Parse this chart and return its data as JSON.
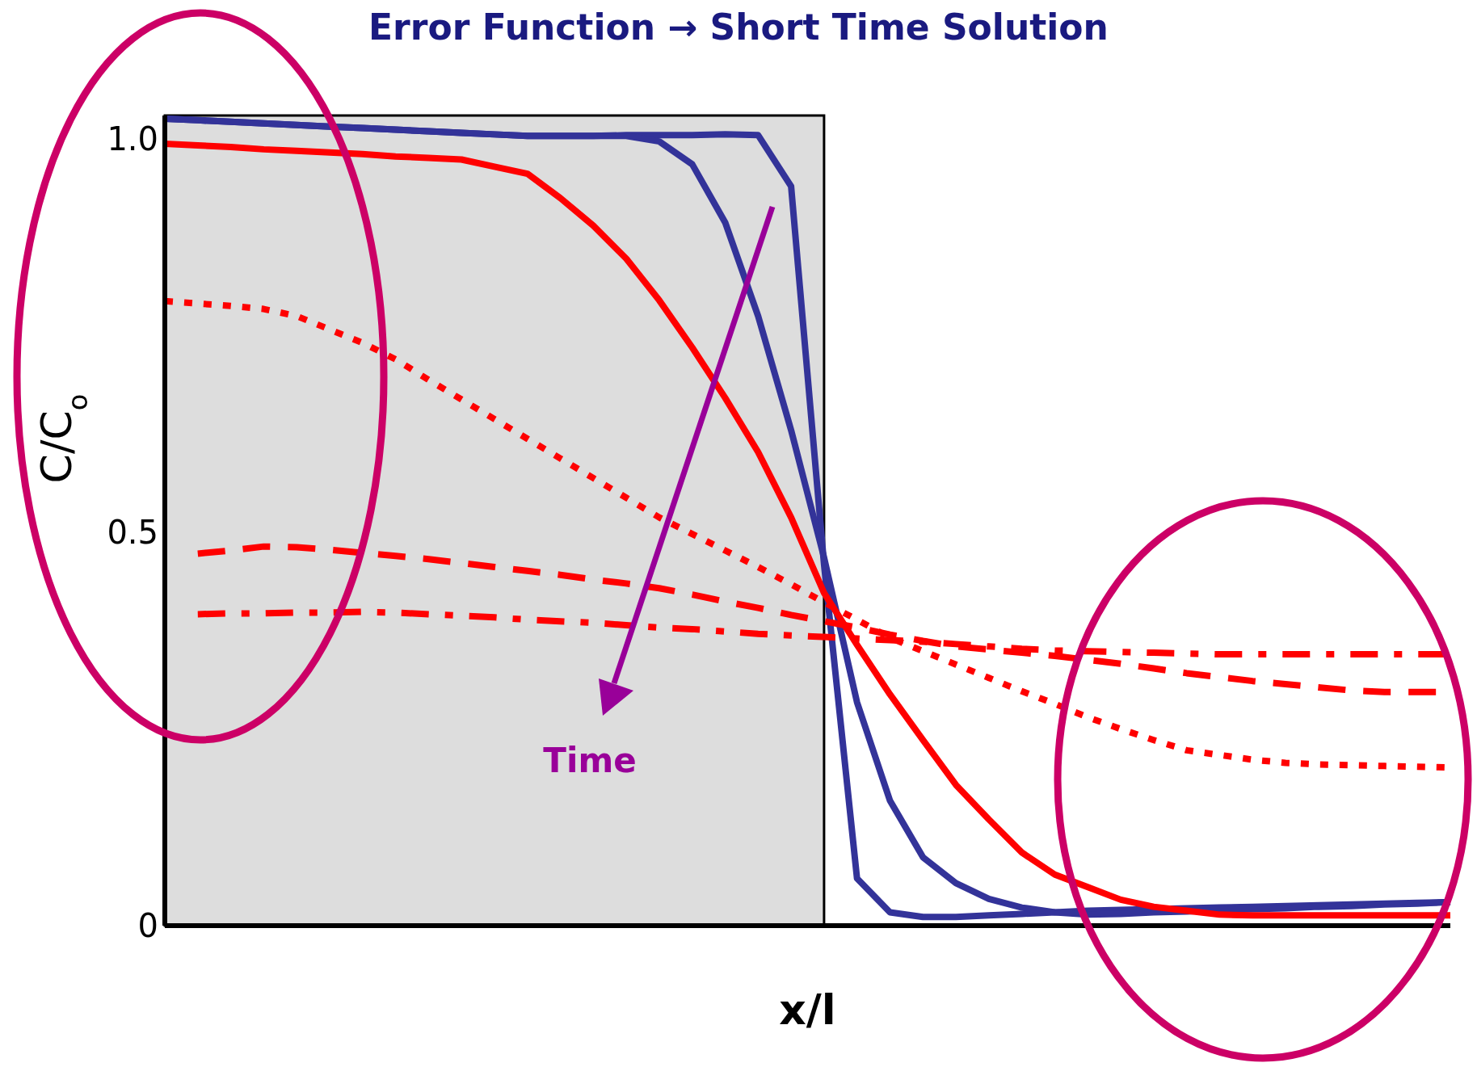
{
  "chart_data": {
    "type": "line",
    "title": "Error Function → Short Time Solution",
    "xlabel": "x/l",
    "ylabel": "C/C$_{o}$",
    "categories": [
      null,
      null,
      null,
      null,
      null,
      null,
      null,
      null,
      null,
      null,
      null,
      null,
      null,
      null,
      null,
      null,
      null,
      null,
      null,
      null,
      null,
      null,
      null,
      null,
      null,
      null,
      null,
      null,
      null,
      null,
      null,
      null,
      null,
      null,
      null,
      null,
      null,
      null,
      null,
      null
    ],
    "ylim": [
      0,
      1.03
    ],
    "yticks": [
      0,
      0.5,
      {
        "value": 1,
        "label": "1.0"
      }
    ],
    "marker": "none",
    "annotations": [
      "Time"
    ],
    "series": [
      {
        "color": "#333399",
        "line_style": "solid",
        "values": [
          1.026,
          1.024,
          1.022,
          1.02,
          1.018,
          1.016,
          1.014,
          1.012,
          1.01,
          1.008,
          1.006,
          1.004,
          1.004,
          1.004,
          1.005,
          1.005,
          1.005,
          1.006,
          1.005,
          0.94,
          0.459,
          0.06,
          0.017,
          0.011,
          0.011,
          0.013,
          0.015,
          0.017,
          0.019,
          0.02,
          0.021,
          0.022,
          0.023,
          0.024,
          0.025,
          0.026,
          0.027,
          0.028,
          0.029,
          0.03
        ]
      },
      {
        "color": "#333399",
        "line_style": "solid",
        "values": [
          1.026,
          1.024,
          1.022,
          1.02,
          1.018,
          1.016,
          1.014,
          1.012,
          1.01,
          1.008,
          1.006,
          1.004,
          1.004,
          1.004,
          1.004,
          0.997,
          0.968,
          0.894,
          0.775,
          0.63,
          0.468,
          0.284,
          0.159,
          0.087,
          0.054,
          0.034,
          0.023,
          0.017,
          0.014,
          0.015,
          0.017,
          0.018,
          0.02,
          0.021,
          0.022,
          0.024,
          0.025,
          0.027,
          0.028,
          0.03
        ]
      },
      {
        "color": "#ff0000",
        "line_style": "solid",
        "values": [
          0.994,
          0.992,
          0.99,
          0.987,
          0.985,
          0.983,
          0.981,
          0.978,
          0.976,
          0.974,
          0.965,
          0.956,
          0.925,
          0.89,
          0.848,
          0.795,
          0.735,
          0.671,
          0.602,
          0.519,
          0.423,
          0.357,
          0.294,
          0.236,
          0.179,
          0.135,
          0.093,
          0.065,
          0.049,
          0.033,
          0.024,
          0.019,
          0.014,
          0.013,
          0.013,
          0.013,
          0.013,
          0.013,
          0.013,
          0.013
        ]
      },
      {
        "color": "#ff0000",
        "line_style": "dotted",
        "values": [
          0.794,
          0.791,
          0.788,
          0.784,
          0.775,
          0.758,
          0.741,
          0.72,
          0.694,
          0.669,
          0.644,
          0.619,
          0.594,
          0.569,
          0.544,
          0.519,
          0.498,
          0.477,
          0.456,
          0.434,
          0.411,
          0.389,
          0.366,
          0.349,
          0.332,
          0.315,
          0.298,
          0.282,
          0.265,
          0.25,
          0.236,
          0.223,
          0.217,
          0.211,
          0.207,
          0.205,
          0.204,
          0.203,
          0.202,
          0.201
        ]
      },
      {
        "color": "#ff0000",
        "line_style": "dashed",
        "values": [
          null,
          0.473,
          0.477,
          0.482,
          0.481,
          0.478,
          0.474,
          0.47,
          0.466,
          0.461,
          0.456,
          0.451,
          0.446,
          0.44,
          0.435,
          0.429,
          0.421,
          0.412,
          0.404,
          0.395,
          0.387,
          0.379,
          0.37,
          0.362,
          0.355,
          0.351,
          0.347,
          0.343,
          0.338,
          0.333,
          0.327,
          0.321,
          0.316,
          0.311,
          0.307,
          0.303,
          0.299,
          0.297,
          0.297,
          0.297
        ]
      },
      {
        "color": "#ff0000",
        "line_style": "dashdot",
        "values": [
          null,
          0.396,
          0.397,
          0.397,
          0.398,
          0.398,
          0.399,
          0.398,
          0.396,
          0.394,
          0.392,
          0.389,
          0.387,
          0.385,
          0.382,
          0.379,
          0.377,
          0.374,
          0.371,
          0.369,
          0.367,
          0.365,
          0.363,
          0.361,
          0.358,
          0.355,
          0.352,
          0.35,
          0.349,
          0.348,
          0.347,
          0.346,
          0.345,
          0.345,
          0.345,
          0.345,
          0.345,
          0.345,
          0.345,
          0.345
        ]
      }
    ]
  }
}
